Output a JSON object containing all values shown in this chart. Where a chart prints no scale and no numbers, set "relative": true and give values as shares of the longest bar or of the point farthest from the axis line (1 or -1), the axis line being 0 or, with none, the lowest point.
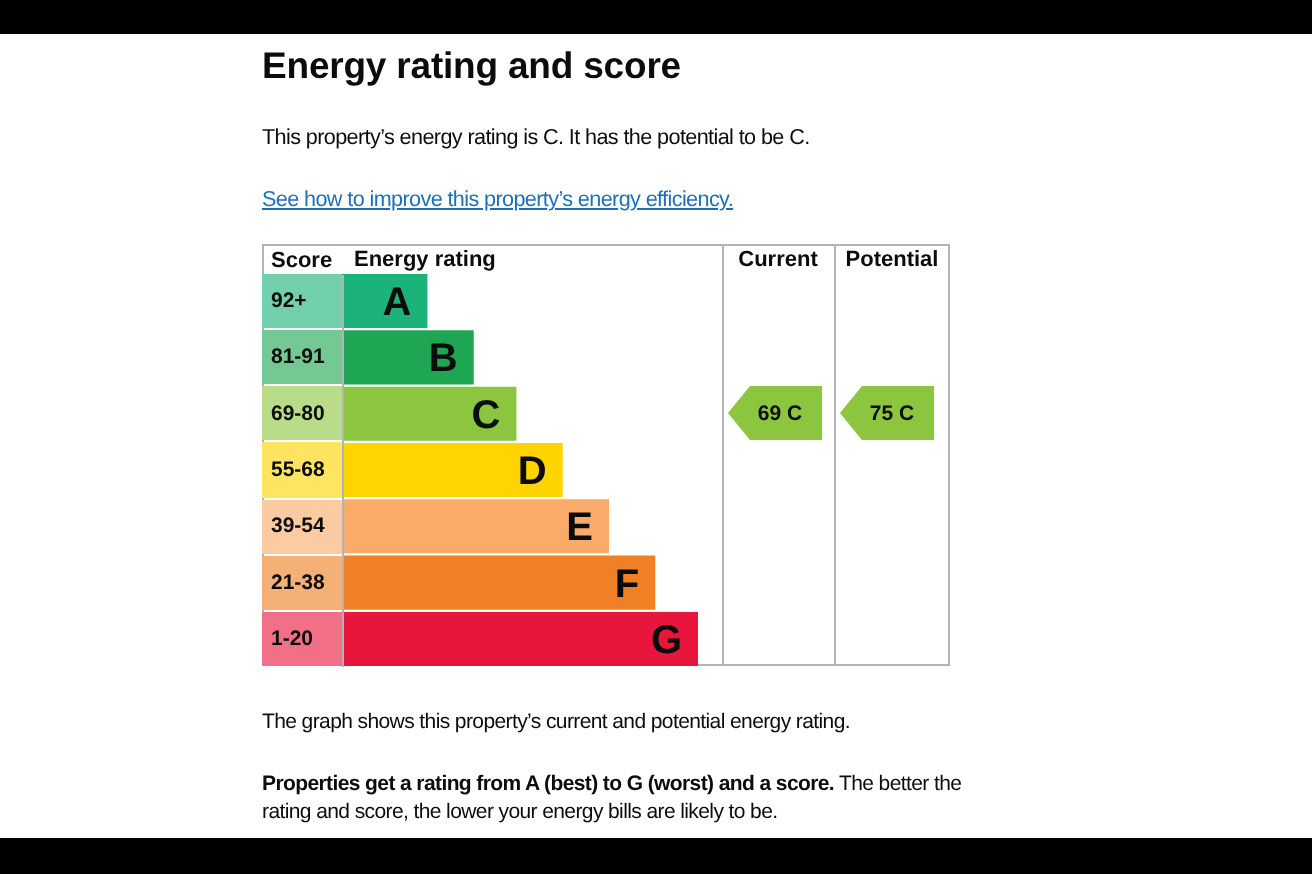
{
  "chart_data": {
    "type": "bar",
    "orientation": "horizontal",
    "relative": true,
    "title": "Energy rating and score",
    "subtitle": "This property’s energy rating is C. It has the potential to be C.",
    "ylabel": "Score",
    "categories": [
      "92+",
      "81-91",
      "69-80",
      "55-68",
      "39-54",
      "21-38",
      "1-20"
    ],
    "values": [
      0.24,
      0.37,
      0.49,
      0.62,
      0.75,
      0.88,
      1
    ],
    "colors": [
      "#1cb37a",
      "#1fa653",
      "#8cc63f",
      "#ffd400",
      "#fbab69",
      "#ef8026",
      "#e8163d"
    ],
    "annotations": [
      "See how to improve this property’s energy efficiency.",
      "Energy rating",
      "Current",
      "Potential",
      {
        "text": "A",
        "x": 0.24,
        "y": "92+"
      },
      {
        "text": "B",
        "x": 0.37,
        "y": "81-91"
      },
      {
        "text": "C",
        "x": 0.49,
        "y": "69-80"
      },
      {
        "text": "D",
        "x": 0.62,
        "y": "55-68"
      },
      {
        "text": "E",
        "x": 0.75,
        "y": "39-54"
      },
      {
        "text": "F",
        "x": 0.88,
        "y": "21-38"
      },
      {
        "text": "G",
        "x": 1,
        "y": "1-20"
      },
      "69 C",
      "75 C",
      "The graph shows this property’s current and potential energy rating.",
      "Properties get a rating from A (best) to G (worst) and a score. The better the rating and score, the lower your energy bills are likely to be."
    ]
  }
}
